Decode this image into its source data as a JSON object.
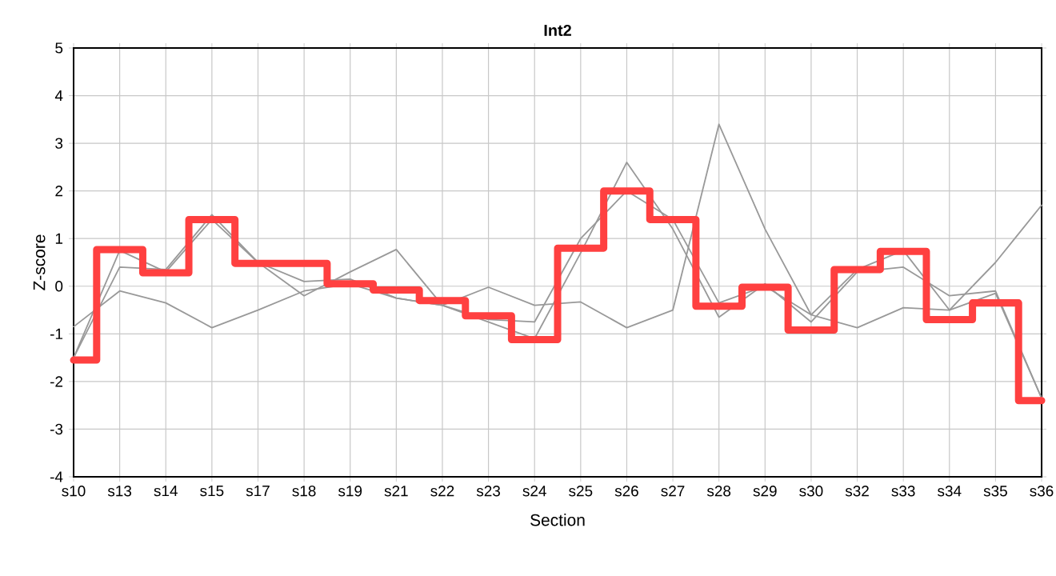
{
  "chart_data": {
    "type": "line",
    "title": "Int2",
    "xlabel": "Section",
    "ylabel": "Z-score",
    "categories": [
      "s10",
      "s13",
      "s14",
      "s15",
      "s17",
      "s18",
      "s19",
      "s21",
      "s22",
      "s23",
      "s24",
      "s25",
      "s26",
      "s27",
      "s28",
      "s29",
      "s30",
      "s32",
      "s33",
      "s34",
      "s35",
      "s36"
    ],
    "ylim": [
      -4,
      5
    ],
    "yticks": [
      -4,
      -3,
      -2,
      -1,
      0,
      1,
      2,
      3,
      4,
      5
    ],
    "grid": true,
    "series": [
      {
        "color": "#999999",
        "values": [
          -0.85,
          -0.1,
          -0.35,
          -0.87,
          -0.5,
          -0.1,
          0.05,
          -0.25,
          -0.4,
          -0.02,
          -0.4,
          -0.33,
          -0.87,
          -0.5,
          3.4,
          1.2,
          -0.6,
          -0.87,
          -0.45,
          -0.5,
          0.5,
          1.7
        ]
      },
      {
        "color": "#999999",
        "values": [
          -1.5,
          0.4,
          0.35,
          1.5,
          0.5,
          -0.2,
          0.3,
          0.77,
          -0.4,
          -0.75,
          -1.1,
          0.7,
          2.6,
          1.2,
          -0.65,
          0.05,
          -0.75,
          0.3,
          0.4,
          -0.2,
          -0.1,
          -2.35
        ]
      },
      {
        "color": "#999999",
        "values": [
          -1.5,
          0.75,
          0.3,
          1.4,
          0.5,
          0.1,
          0.15,
          -0.25,
          -0.4,
          -0.7,
          -0.75,
          1.0,
          2.0,
          1.4,
          -0.35,
          0.0,
          -0.6,
          0.35,
          0.75,
          -0.5,
          -0.15,
          -2.35
        ]
      },
      {
        "type": "step",
        "color": "#ff4040",
        "values": [
          -1.55,
          0.77,
          0.28,
          1.4,
          0.48,
          0.48,
          0.05,
          -0.08,
          -0.3,
          -0.62,
          -1.12,
          0.8,
          2.0,
          1.4,
          -0.42,
          -0.02,
          -0.92,
          0.35,
          0.73,
          -0.7,
          -0.35,
          -2.4
        ]
      }
    ]
  }
}
